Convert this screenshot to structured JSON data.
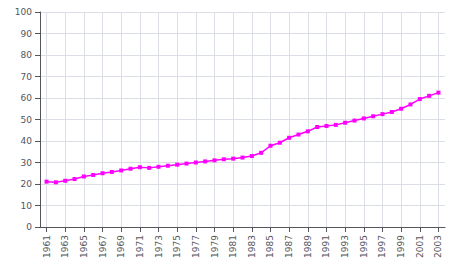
{
  "chart_data": {
    "type": "line",
    "x": [
      1961,
      1962,
      1963,
      1964,
      1965,
      1966,
      1967,
      1968,
      1969,
      1970,
      1971,
      1972,
      1973,
      1974,
      1975,
      1976,
      1977,
      1978,
      1979,
      1980,
      1981,
      1982,
      1983,
      1984,
      1985,
      1986,
      1987,
      1988,
      1989,
      1990,
      1991,
      1992,
      1993,
      1994,
      1995,
      1996,
      1997,
      1998,
      1999,
      2000,
      2001,
      2002,
      2003
    ],
    "values": [
      21.1,
      20.8,
      21.5,
      22.3,
      23.5,
      24.2,
      25.0,
      25.6,
      26.3,
      27.1,
      27.8,
      27.5,
      28.0,
      28.5,
      29.0,
      29.5,
      30.0,
      30.5,
      31.0,
      31.5,
      31.8,
      32.3,
      33.0,
      34.5,
      37.8,
      39.2,
      41.5,
      43.0,
      44.5,
      46.5,
      47.0,
      47.5,
      48.5,
      49.5,
      50.5,
      51.5,
      52.5,
      53.5,
      55.0,
      57.0,
      59.5,
      61.0,
      62.5
    ],
    "color": "#ff00ff",
    "marker": "square",
    "xlim": [
      1960.3,
      2003.7
    ],
    "xticks": [
      1961,
      1963,
      1965,
      1967,
      1969,
      1971,
      1973,
      1975,
      1977,
      1979,
      1981,
      1983,
      1985,
      1987,
      1989,
      1991,
      1993,
      1995,
      1997,
      1999,
      2001,
      2003
    ],
    "ylim": [
      0,
      100
    ],
    "yticks": [
      0,
      10,
      20,
      30,
      40,
      50,
      60,
      70,
      80,
      90,
      100
    ],
    "grid": true
  }
}
